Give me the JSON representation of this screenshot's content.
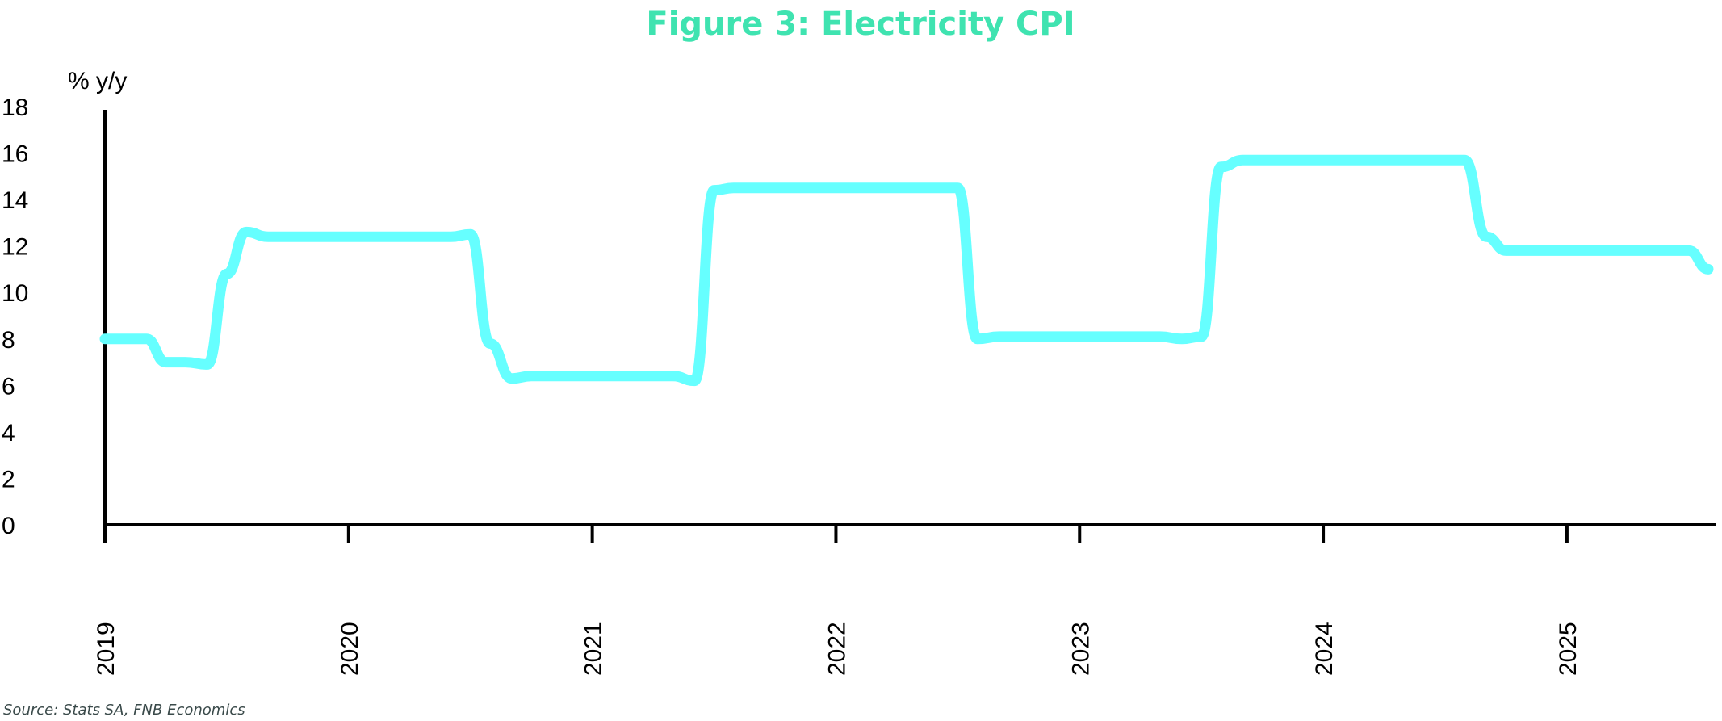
{
  "chart_data": {
    "type": "line",
    "title": "Figure 3: Electricity CPI",
    "ylabel": "% y/y",
    "xlabel": "",
    "source": "Source: Stats SA, FNB Economics",
    "ylim": [
      0,
      18
    ],
    "yticks": [
      "0",
      "2",
      "4",
      "6",
      "8",
      "10",
      "12",
      "14",
      "16",
      "18"
    ],
    "xlim": [
      2019.0,
      2025.6
    ],
    "xticks": [
      "2019",
      "2020",
      "2021",
      "2022",
      "2023",
      "2024",
      "2025"
    ],
    "grid": false,
    "legend": "none",
    "colors": {
      "line": "#66ffff",
      "title": "#3fe3b0",
      "axis": "#000000"
    },
    "series": [
      {
        "x": [
          2019.0,
          2019.08,
          2019.17,
          2019.25,
          2019.33,
          2019.42,
          2019.5,
          2019.58,
          2019.67,
          2019.75,
          2019.83,
          2019.92,
          2020.0,
          2020.08,
          2020.17,
          2020.25,
          2020.33,
          2020.42,
          2020.5,
          2020.58,
          2020.67,
          2020.75,
          2020.83,
          2020.92,
          2021.0,
          2021.08,
          2021.17,
          2021.25,
          2021.33,
          2021.42,
          2021.5,
          2021.58,
          2021.67,
          2021.75,
          2021.83,
          2021.92,
          2022.0,
          2022.08,
          2022.17,
          2022.25,
          2022.33,
          2022.42,
          2022.5,
          2022.58,
          2022.67,
          2022.75,
          2022.83,
          2022.92,
          2023.0,
          2023.08,
          2023.17,
          2023.25,
          2023.33,
          2023.42,
          2023.5,
          2023.58,
          2023.67,
          2023.75,
          2023.83,
          2023.92,
          2024.0,
          2024.08,
          2024.17,
          2024.25,
          2024.33,
          2024.42,
          2024.5,
          2024.58,
          2024.67,
          2024.75,
          2024.83,
          2024.92,
          2025.0,
          2025.08,
          2025.17,
          2025.25,
          2025.33,
          2025.42,
          2025.5,
          2025.58
        ],
        "values": [
          8.0,
          8.0,
          8.0,
          7.0,
          7.0,
          6.9,
          10.8,
          12.6,
          12.4,
          12.4,
          12.4,
          12.4,
          12.4,
          12.4,
          12.4,
          12.4,
          12.4,
          12.4,
          12.5,
          7.8,
          6.3,
          6.4,
          6.4,
          6.4,
          6.4,
          6.4,
          6.4,
          6.4,
          6.4,
          6.2,
          14.4,
          14.5,
          14.5,
          14.5,
          14.5,
          14.5,
          14.5,
          14.5,
          14.5,
          14.5,
          14.5,
          14.5,
          14.5,
          8.0,
          8.1,
          8.1,
          8.1,
          8.1,
          8.1,
          8.1,
          8.1,
          8.1,
          8.1,
          8.0,
          8.1,
          15.4,
          15.7,
          15.7,
          15.7,
          15.7,
          15.7,
          15.7,
          15.7,
          15.7,
          15.7,
          15.7,
          15.7,
          15.7,
          12.4,
          11.8,
          11.8,
          11.8,
          11.8,
          11.8,
          11.8,
          11.8,
          11.8,
          11.8,
          11.8,
          11.0
        ]
      }
    ]
  }
}
